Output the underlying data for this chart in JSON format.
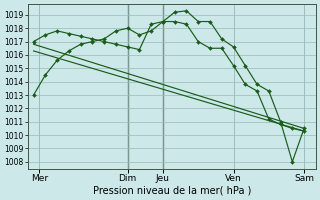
{
  "background_color": "#cce8e8",
  "grid_color": "#99bbbb",
  "line_color": "#1a5c1a",
  "xlabel": "Pression niveau de la mer( hPa )",
  "ylim": [
    1007.5,
    1019.8
  ],
  "yticks": [
    1008,
    1009,
    1010,
    1011,
    1012,
    1013,
    1014,
    1015,
    1016,
    1017,
    1018,
    1019
  ],
  "xlim": [
    -0.5,
    24
  ],
  "xtick_positions": [
    0.5,
    8,
    11,
    17,
    23
  ],
  "xtick_labels": [
    "Mer",
    "Dim",
    "Jeu",
    "Ven",
    "Sam"
  ],
  "vline_positions": [
    0.5,
    8,
    11,
    17,
    23
  ],
  "vline_dark": [
    8,
    11
  ],
  "series": [
    {
      "x": [
        0,
        1,
        2,
        3,
        4,
        5,
        6,
        7,
        8,
        9,
        10,
        11,
        12,
        13,
        14,
        15,
        16,
        17,
        18,
        19,
        20,
        21,
        22,
        23
      ],
      "y": [
        1013.0,
        1014.5,
        1015.6,
        1016.3,
        1016.8,
        1017.0,
        1017.2,
        1017.8,
        1018.0,
        1017.5,
        1017.8,
        1018.5,
        1019.2,
        1019.3,
        1018.5,
        1018.5,
        1017.2,
        1016.6,
        1015.2,
        1013.8,
        1013.3,
        1011.0,
        1008.0,
        1010.5
      ]
    },
    {
      "x": [
        0,
        1,
        2,
        3,
        4,
        5,
        6,
        7,
        8,
        9,
        10,
        11,
        12,
        13,
        14,
        15,
        16,
        17,
        18,
        19,
        20,
        21,
        22,
        23
      ],
      "y": [
        1017.0,
        1017.5,
        1017.8,
        1017.6,
        1017.4,
        1017.2,
        1017.0,
        1016.8,
        1016.6,
        1016.4,
        1018.3,
        1018.5,
        1018.5,
        1018.3,
        1017.0,
        1016.5,
        1016.5,
        1015.2,
        1013.8,
        1013.3,
        1011.2,
        1010.8,
        1010.5,
        1010.3
      ]
    },
    {
      "x": [
        0,
        23
      ],
      "y": [
        1016.8,
        1010.5
      ],
      "markers": false
    },
    {
      "x": [
        0,
        23
      ],
      "y": [
        1016.3,
        1010.3
      ],
      "markers": false
    }
  ]
}
